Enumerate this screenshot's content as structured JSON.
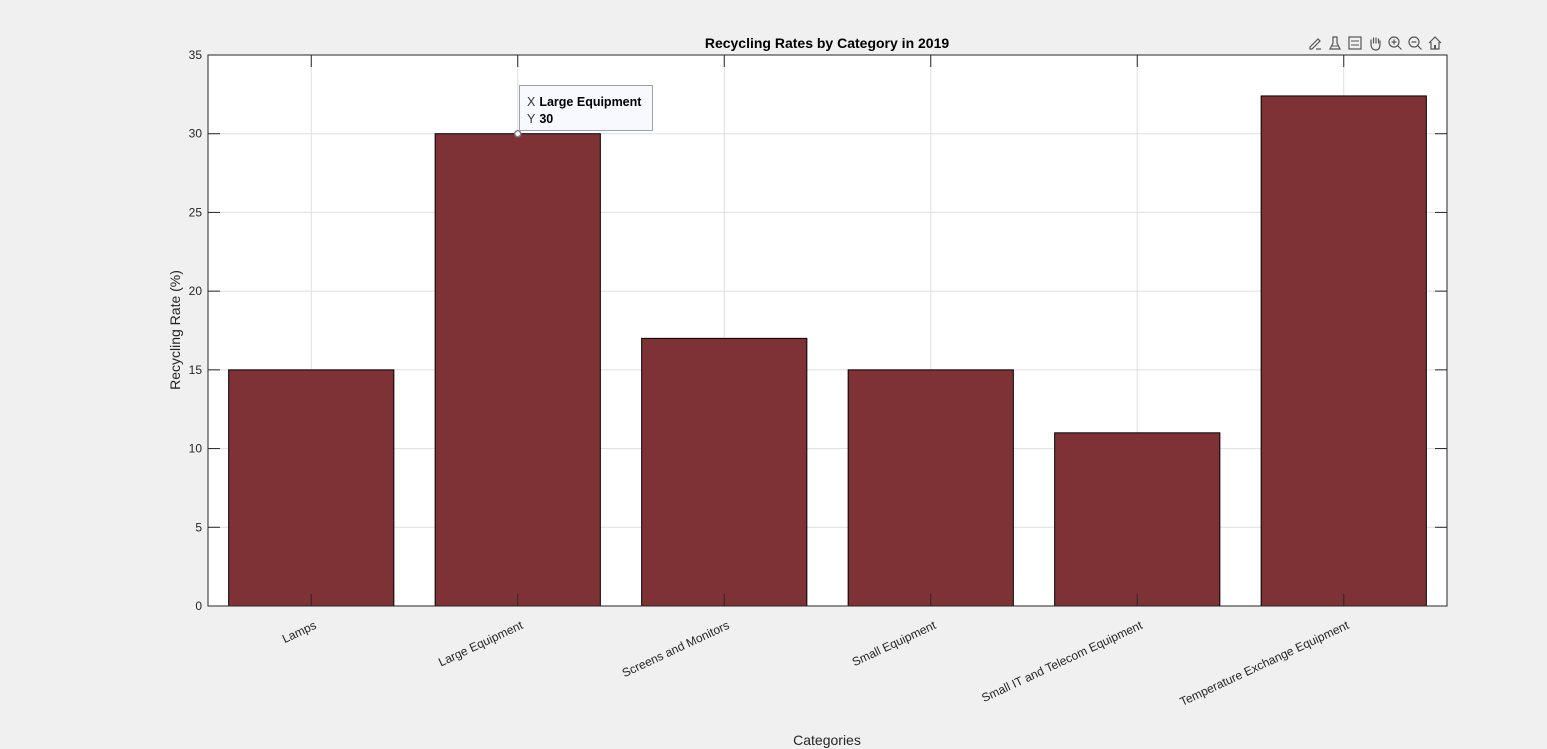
{
  "chart_data": {
    "type": "bar",
    "title": "Recycling Rates by Category in 2019",
    "xlabel": "Categories",
    "ylabel": "Recycling Rate (%)",
    "categories": [
      "Lamps",
      "Large Equipment",
      "Screens and Monitors",
      "Small Equipment",
      "Small IT and Telecom Equipment",
      "Temperature Exchange Equipment"
    ],
    "values": [
      15,
      30,
      17,
      15,
      11,
      32.4
    ],
    "ylim": [
      0,
      35
    ],
    "yticks": [
      0,
      5,
      10,
      15,
      20,
      25,
      30,
      35
    ],
    "grid": true,
    "bar_color": "#7f3235"
  },
  "datatip": {
    "x_key": "X",
    "x_value": "Large Equipment",
    "y_key": "Y",
    "y_value": "30"
  },
  "toolbar": {
    "icons": [
      "edit-icon",
      "brush-icon",
      "datatip-icon",
      "pan-icon",
      "zoom-in-icon",
      "zoom-out-icon",
      "home-icon"
    ]
  }
}
